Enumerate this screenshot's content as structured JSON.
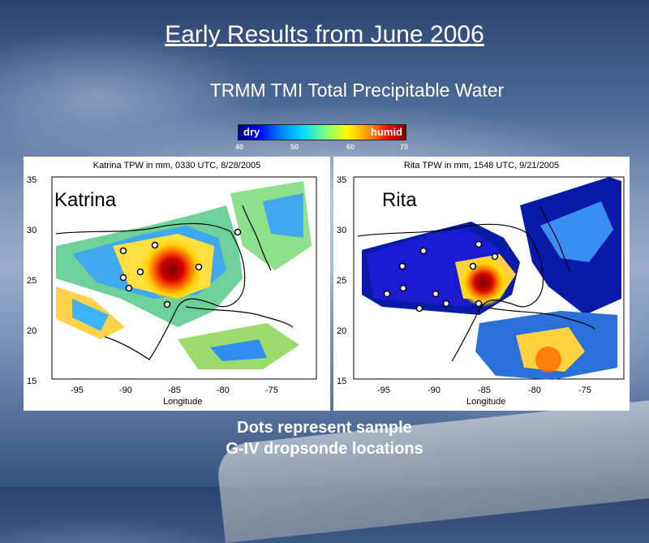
{
  "slide": {
    "title": "Early Results from June 2006",
    "subtitle": "TRMM TMI Total Precipitable Water",
    "footer_line1": "Dots represent sample",
    "footer_line2": "G-IV dropsonde locations"
  },
  "colorbar": {
    "left_label": "dry",
    "right_label": "humid",
    "ticks": [
      "40",
      "50",
      "60",
      "70"
    ]
  },
  "panels": [
    {
      "title": "Katrina TPW in mm, 0330 UTC, 8/28/2005",
      "storm": "Katrina",
      "xlabel": "Longitude",
      "xticks": [
        "-95",
        "-90",
        "-85",
        "-80",
        "-75"
      ],
      "yticks": [
        "35",
        "30",
        "25",
        "20",
        "15"
      ]
    },
    {
      "title": "Rita TPW in mm, 1548 UTC, 9/21/2005",
      "storm": "Rita",
      "xlabel": "Longitude",
      "xticks": [
        "-95",
        "-90",
        "-85",
        "-80",
        "-75"
      ],
      "yticks": [
        "35",
        "30",
        "25",
        "20",
        "15"
      ]
    }
  ]
}
